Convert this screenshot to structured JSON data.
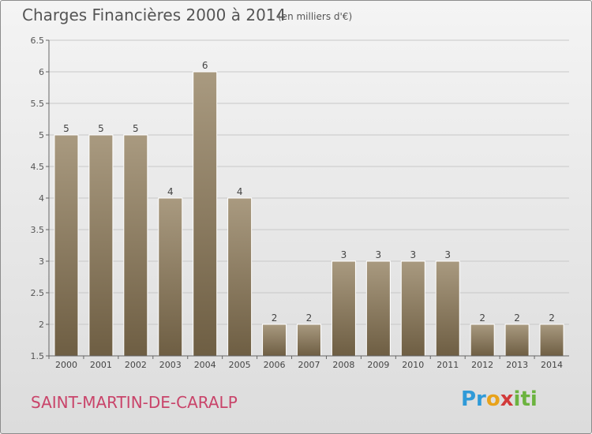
{
  "title": "Charges Financières 2000 à 2014",
  "subtitle": "(en milliers d'€)",
  "commune": "SAINT-MARTIN-DE-CARALP",
  "logo": {
    "text": "Proxiti",
    "parts": [
      "Pr",
      "o",
      "x",
      "iti"
    ]
  },
  "colors": {
    "bar_top": "#a99a80",
    "bar_bottom": "#6e5e43",
    "commune": "#c9446a",
    "text": "#555555"
  },
  "chart_data": {
    "type": "bar",
    "title": "Charges Financières 2000 à 2014",
    "subtitle": "(en milliers d'€)",
    "categories": [
      "2000",
      "2001",
      "2002",
      "2003",
      "2004",
      "2005",
      "2006",
      "2007",
      "2008",
      "2009",
      "2010",
      "2011",
      "2012",
      "2013",
      "2014"
    ],
    "values": [
      5,
      5,
      5,
      4,
      6,
      4,
      2,
      2,
      3,
      3,
      3,
      3,
      2,
      2,
      2
    ],
    "data_labels": [
      "5",
      "5",
      "5",
      "4",
      "6",
      "4",
      "2",
      "2",
      "3",
      "3",
      "3",
      "3",
      "2",
      "2",
      "2"
    ],
    "ylim": [
      1.5,
      6.5
    ],
    "yticks": [
      "1.5",
      "2",
      "2.5",
      "3",
      "3.5",
      "4",
      "4.5",
      "5",
      "5.5",
      "6",
      "6.5"
    ],
    "grid": true,
    "xlabel": "",
    "ylabel": ""
  }
}
